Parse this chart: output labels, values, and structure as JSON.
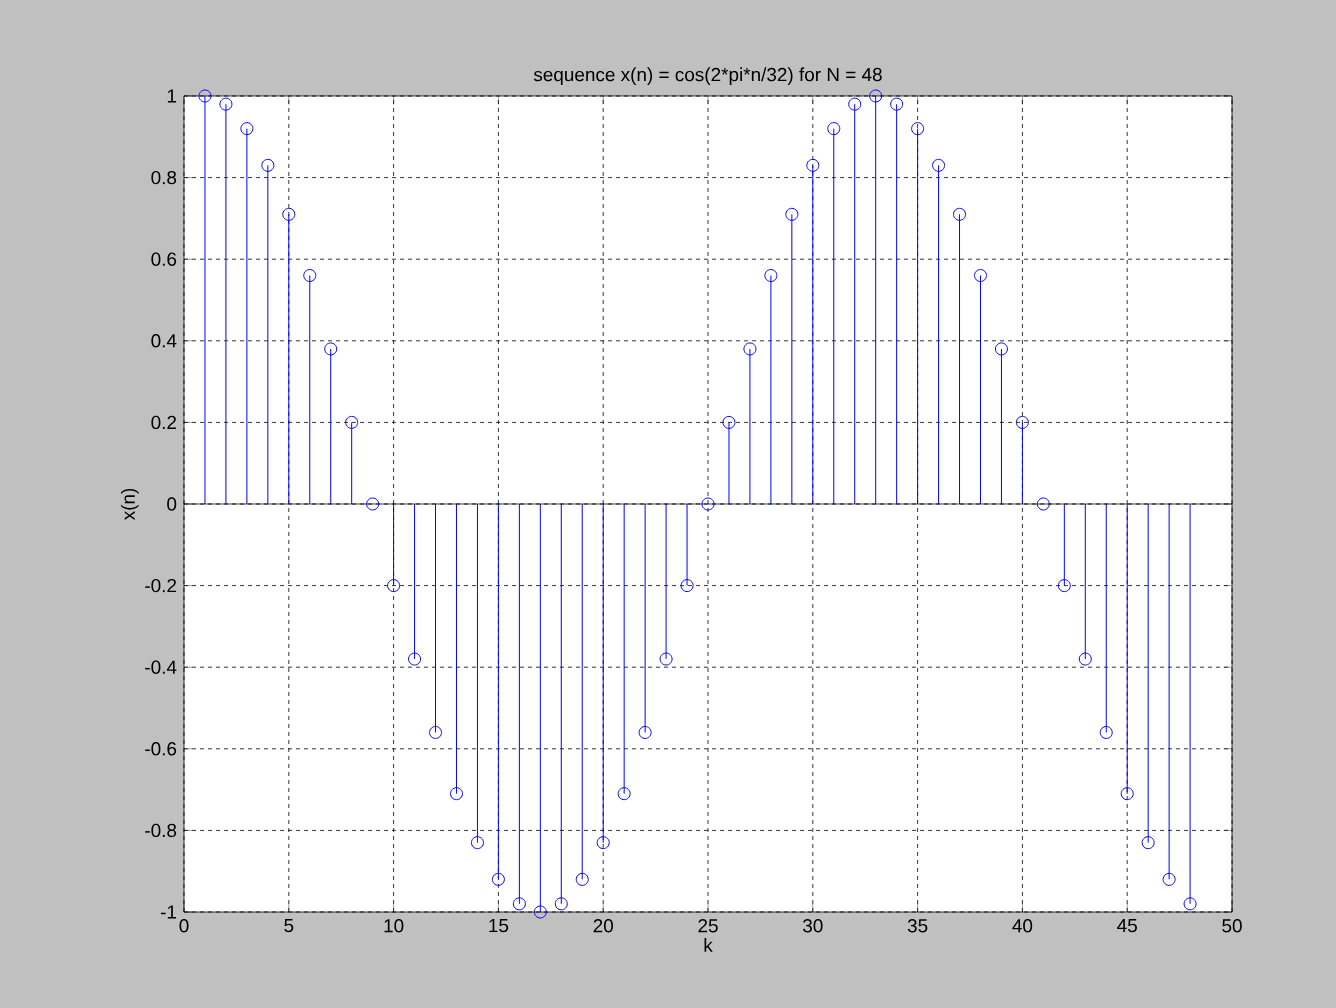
{
  "chart_data": {
    "type": "lollipop",
    "title": "sequence x(n) = cos(2*pi*n/32) for N = 48",
    "xlabel": "k",
    "ylabel": "x(n)",
    "x": [
      1,
      2,
      3,
      4,
      5,
      6,
      7,
      8,
      9,
      10,
      11,
      12,
      13,
      14,
      15,
      16,
      17,
      18,
      19,
      20,
      21,
      22,
      23,
      24,
      25,
      26,
      27,
      28,
      29,
      30,
      31,
      32,
      33,
      34,
      35,
      36,
      37,
      38,
      39,
      40,
      41,
      42,
      43,
      44,
      45,
      46,
      47,
      48
    ],
    "values": [
      1,
      0.98,
      0.92,
      0.83,
      0.71,
      0.56,
      0.38,
      0.2,
      0,
      -0.2,
      -0.38,
      -0.56,
      -0.71,
      -0.83,
      -0.92,
      -0.98,
      -1,
      -0.98,
      -0.92,
      -0.83,
      -0.71,
      -0.56,
      -0.38,
      -0.2,
      0,
      0.2,
      0.38,
      0.56,
      0.71,
      0.83,
      0.92,
      0.98,
      1,
      0.98,
      0.92,
      0.83,
      0.71,
      0.56,
      0.38,
      0.2,
      0,
      -0.2,
      -0.38,
      -0.56,
      -0.71,
      -0.83,
      -0.92,
      -0.98
    ],
    "color": "#0000ff",
    "marker": "circle",
    "line_style": "solid",
    "xlim": [
      0,
      50
    ],
    "xticks": [
      0,
      5,
      10,
      15,
      20,
      25,
      30,
      35,
      40,
      45,
      50
    ],
    "ylim": [
      -1,
      1
    ],
    "yticks": [
      -1,
      -0.8,
      -0.6,
      -0.4,
      -0.2,
      0,
      0.2,
      0.4,
      0.6,
      0.8,
      1
    ],
    "grid": true,
    "ref_lines": [
      {
        "axis": "y",
        "value": 0,
        "color": "#000000"
      }
    ]
  }
}
